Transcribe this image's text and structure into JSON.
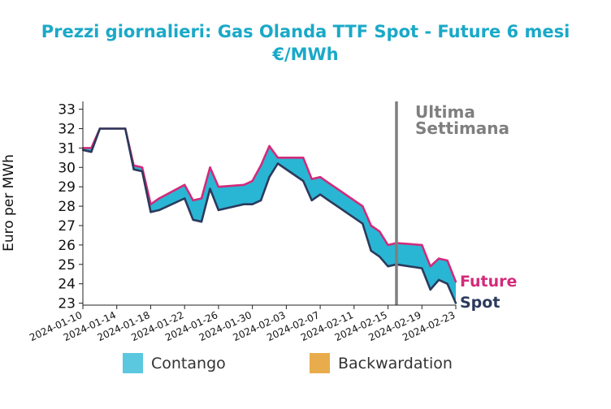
{
  "chart_data": {
    "type": "area",
    "title": "Prezzi giornalieri: Gas Olanda TTF Spot - Future 6 mesi",
    "subtitle": "€/MWh",
    "ylabel": "Euro per MWh",
    "xlabel": "",
    "ylim": [
      22.9,
      33.4
    ],
    "yticks": [
      23,
      24,
      25,
      26,
      27,
      28,
      29,
      30,
      31,
      32,
      33
    ],
    "xlim": [
      "2024-01-10",
      "2024-02-23"
    ],
    "xticks": [
      "2024-01-10",
      "2024-01-14",
      "2024-01-18",
      "2024-01-22",
      "2024-01-26",
      "2024-01-30",
      "2024-02-03",
      "2024-02-07",
      "2024-02-11",
      "2024-02-15",
      "2024-02-19",
      "2024-02-23"
    ],
    "grid": false,
    "x": [
      "2024-01-10",
      "2024-01-11",
      "2024-01-12",
      "2024-01-15",
      "2024-01-16",
      "2024-01-17",
      "2024-01-18",
      "2024-01-19",
      "2024-01-22",
      "2024-01-23",
      "2024-01-24",
      "2024-01-25",
      "2024-01-26",
      "2024-01-29",
      "2024-01-30",
      "2024-01-31",
      "2024-02-01",
      "2024-02-02",
      "2024-02-05",
      "2024-02-06",
      "2024-02-07",
      "2024-02-08",
      "2024-02-09",
      "2024-02-12",
      "2024-02-13",
      "2024-02-14",
      "2024-02-15",
      "2024-02-16",
      "2024-02-19",
      "2024-02-20",
      "2024-02-21",
      "2024-02-22",
      "2024-02-23"
    ],
    "series": [
      {
        "name": "Future",
        "color": "#d42a7a",
        "values": [
          31.0,
          31.0,
          32.0,
          32.0,
          30.1,
          30.0,
          28.1,
          28.4,
          29.1,
          28.3,
          28.4,
          30.0,
          29.0,
          29.1,
          29.3,
          30.1,
          31.1,
          30.5,
          30.5,
          29.4,
          29.5,
          29.2,
          28.9,
          28.0,
          27.0,
          26.7,
          26.0,
          26.1,
          26.0,
          24.9,
          25.3,
          25.2,
          24.1
        ]
      },
      {
        "name": "Spot",
        "color": "#2b3a5c",
        "values": [
          30.9,
          30.8,
          32.0,
          32.0,
          29.9,
          29.8,
          27.7,
          27.8,
          28.4,
          27.3,
          27.2,
          28.9,
          27.8,
          28.1,
          28.1,
          28.3,
          29.5,
          30.2,
          29.3,
          28.3,
          28.6,
          28.3,
          28.0,
          27.1,
          25.7,
          25.4,
          24.9,
          25.0,
          24.8,
          23.7,
          24.2,
          24.0,
          23.0
        ]
      }
    ],
    "band_colors": {
      "contango": "#29b6d4",
      "backwardation": "#e8a84a"
    },
    "vline": {
      "x": "2024-02-16",
      "label_line1": "Ultima",
      "label_line2": "Settimana",
      "color": "#7f7f7f"
    },
    "legend": {
      "position": "bottom",
      "items": [
        {
          "label": "Contango",
          "color": "#5bc8e0"
        },
        {
          "label": "Backwardation",
          "color": "#e8ac4c"
        }
      ]
    }
  }
}
